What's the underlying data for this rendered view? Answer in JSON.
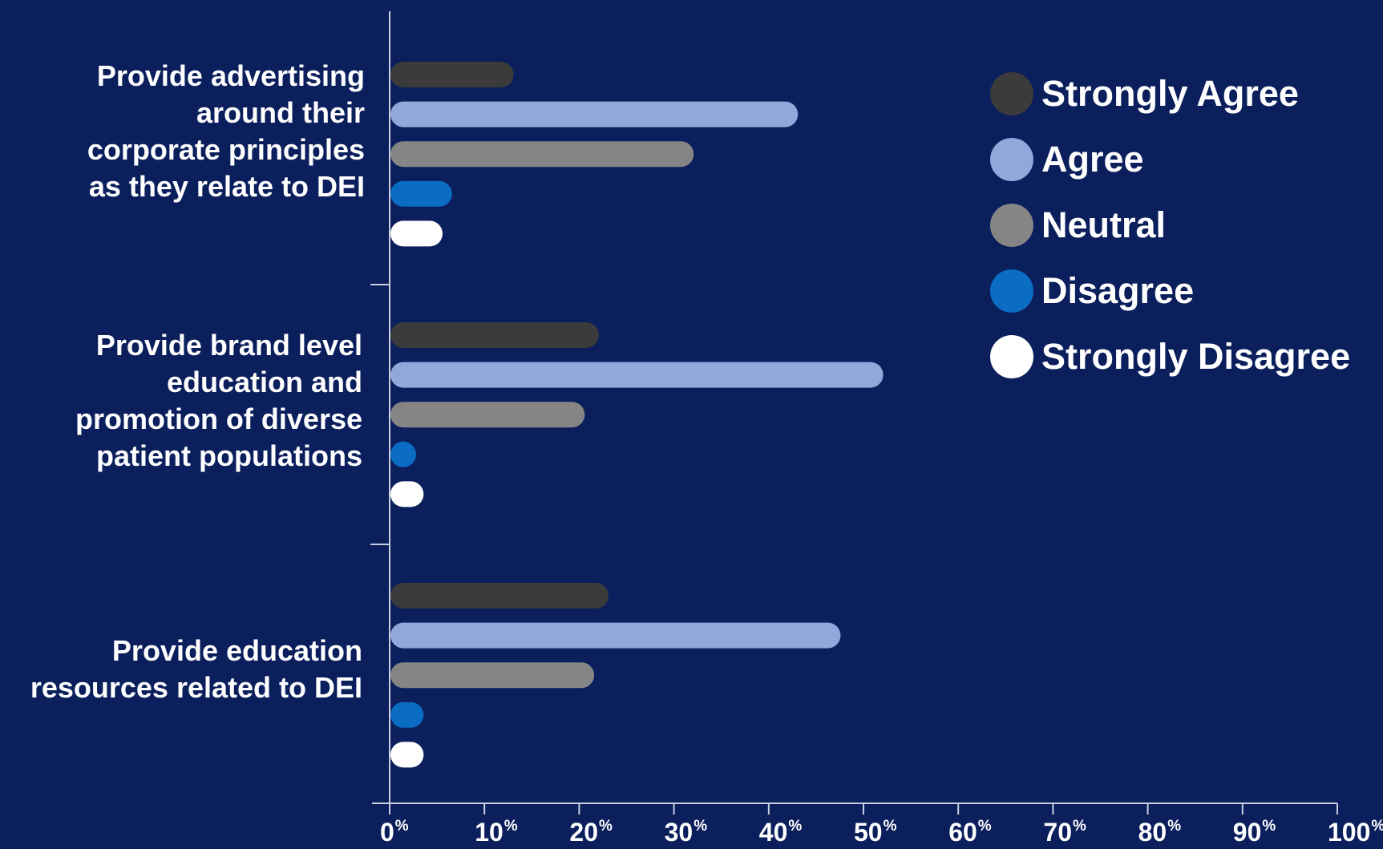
{
  "chart_data": {
    "type": "bar",
    "orientation": "horizontal",
    "categories": [
      "Provide advertising\naround their\ncorporate principles\nas they relate to DEI",
      "Provide brand level\neducation and\npromotion of diverse\npatient populations",
      "Provide education\nresources related to DEI"
    ],
    "series": [
      {
        "name": "Strongly Agree",
        "color": "#3b3b3b",
        "values": [
          13,
          22,
          23
        ]
      },
      {
        "name": "Agree",
        "color": "#90a9da",
        "values": [
          43,
          52,
          47.5
        ]
      },
      {
        "name": "Neutral",
        "color": "#858585",
        "values": [
          32,
          20.5,
          21.5
        ]
      },
      {
        "name": "Disagree",
        "color": "#0b6cc4",
        "values": [
          6.5,
          2.5,
          3.5
        ]
      },
      {
        "name": "Strongly Disagree",
        "color": "#ffffff",
        "values": [
          5.5,
          3.5,
          3.5
        ]
      }
    ],
    "xlim": [
      0,
      100
    ],
    "ticks": [
      {
        "num": "0",
        "unit": "%"
      },
      {
        "num": "10",
        "unit": "%"
      },
      {
        "num": "20",
        "unit": "%"
      },
      {
        "num": "30",
        "unit": "%"
      },
      {
        "num": "40",
        "unit": "%"
      },
      {
        "num": "50",
        "unit": "%"
      },
      {
        "num": "60",
        "unit": "%"
      },
      {
        "num": "70",
        "unit": "%"
      },
      {
        "num": "80",
        "unit": "%"
      },
      {
        "num": "90",
        "unit": "%"
      },
      {
        "num": "100",
        "unit": "%"
      }
    ],
    "legend_position": "top-right",
    "grid": false
  }
}
